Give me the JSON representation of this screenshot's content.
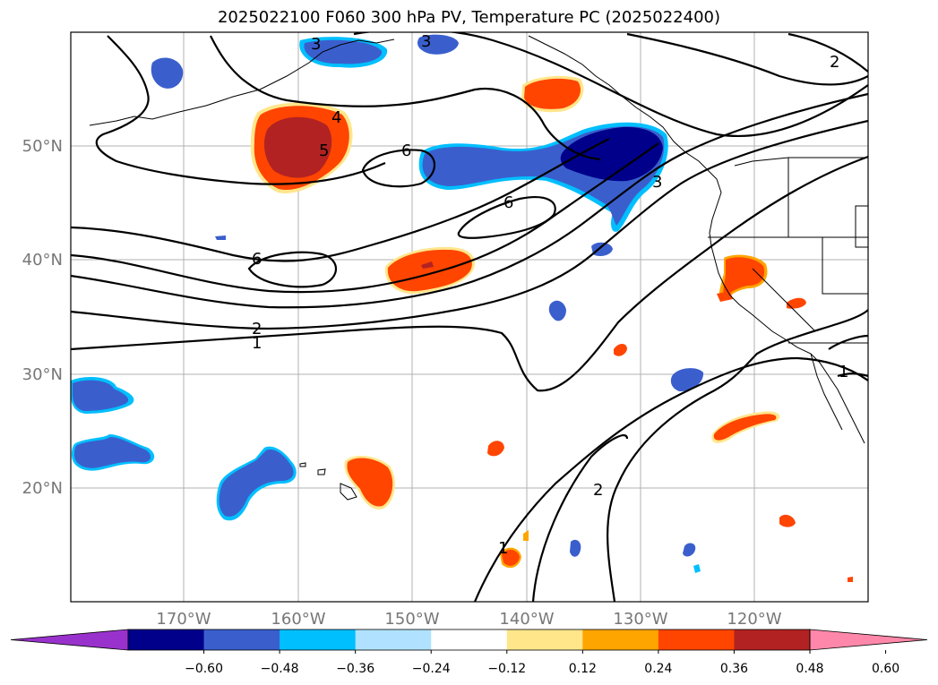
{
  "title": "2025022100 F060 300 hPa PV, Temperature PC (2025022400)",
  "map": {
    "lon_ticks": [
      "170°W",
      "160°W",
      "150°W",
      "140°W",
      "130°W",
      "120°W"
    ],
    "lat_ticks": [
      "50°N",
      "40°N",
      "30°N",
      "20°N"
    ],
    "contour_labels": [
      "3",
      "3",
      "4",
      "5",
      "6",
      "6",
      "6",
      "2",
      "1",
      "3",
      "2",
      "1",
      "2",
      "1"
    ]
  },
  "colorbar": {
    "ticks": [
      "−0.60",
      "−0.48",
      "−0.36",
      "−0.24",
      "−0.12",
      "0.12",
      "0.24",
      "0.36",
      "0.48",
      "0.60"
    ],
    "colors": [
      "#9932cc",
      "#00008b",
      "#3a5fcd",
      "#00bfff",
      "#b0e2ff",
      "#ffffff",
      "#ffe68a",
      "#ffa500",
      "#ff4500",
      "#b22222",
      "#ff88aa"
    ]
  }
}
